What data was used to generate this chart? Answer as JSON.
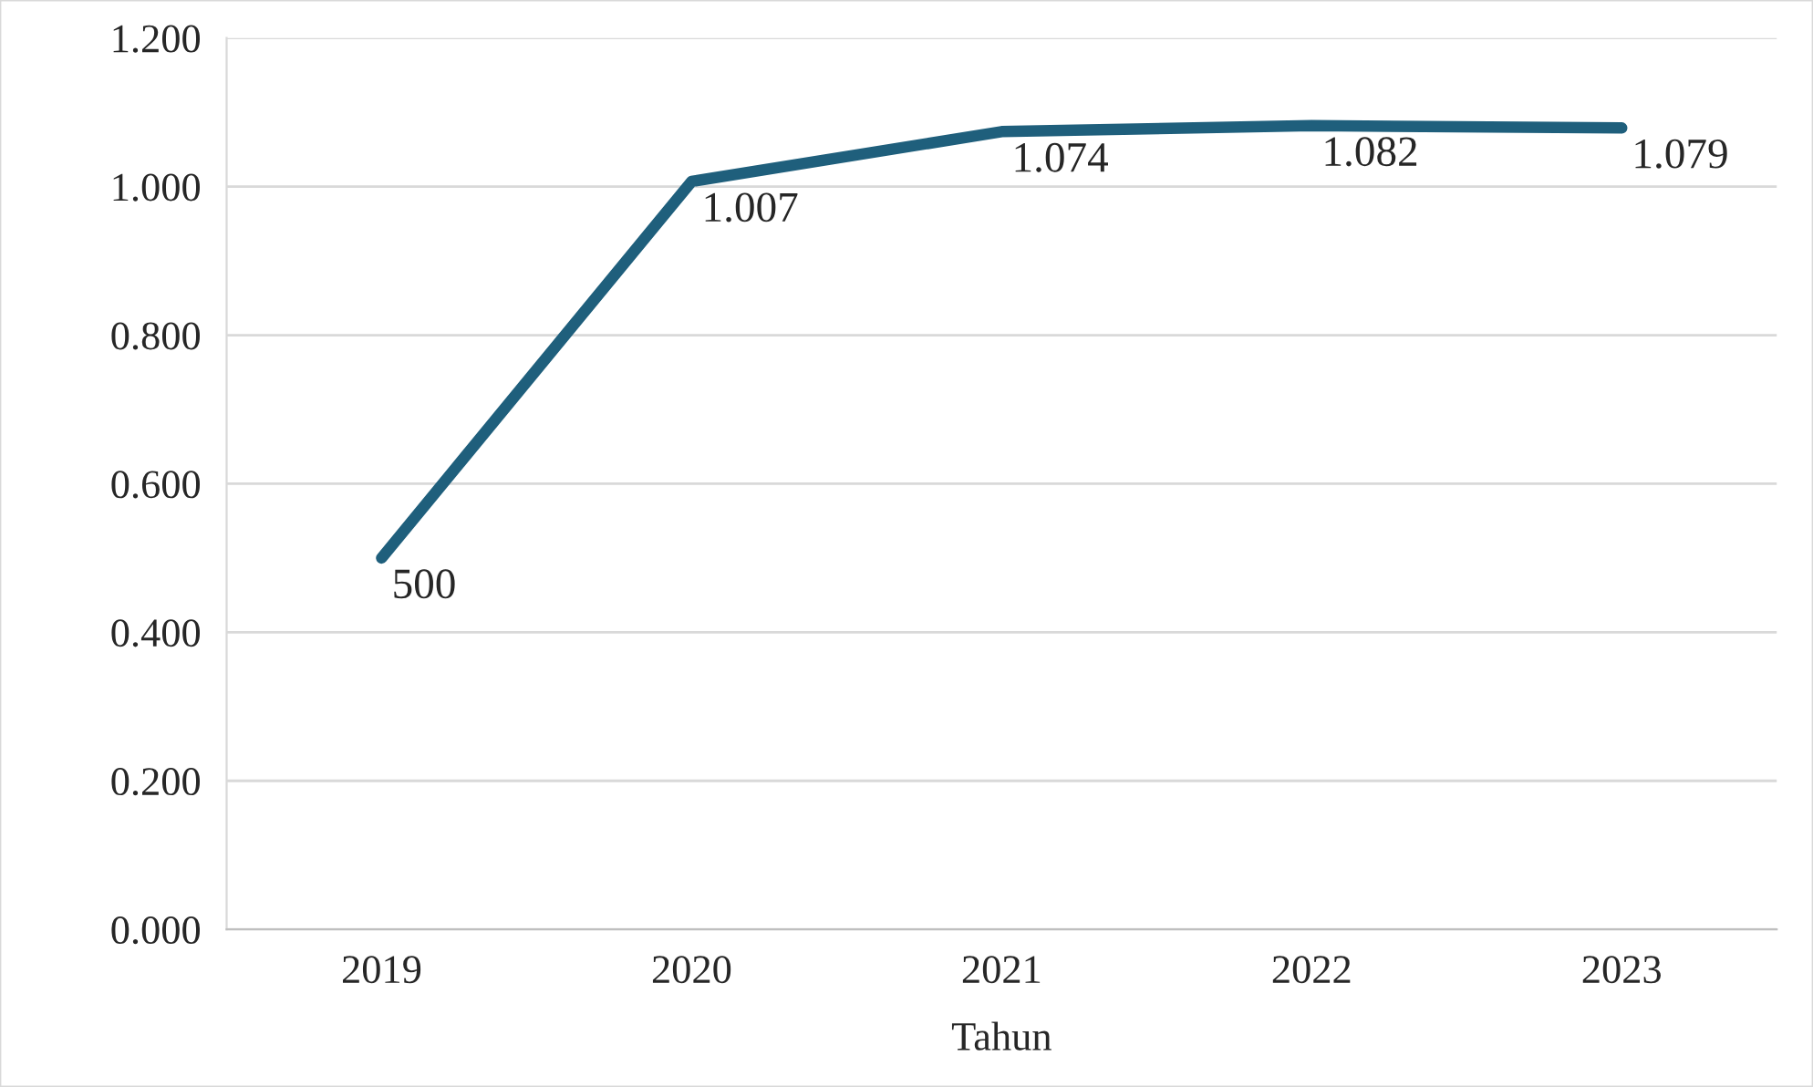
{
  "chart_data": {
    "type": "line",
    "xlabel": "Tahun",
    "categories": [
      "2019",
      "2020",
      "2021",
      "2022",
      "2023"
    ],
    "series": [
      {
        "color": "#1f5f7c",
        "values": [
          0.5,
          1.007,
          1.074,
          1.082,
          1.079
        ],
        "value_labels": [
          null,
          "1.007",
          "1.074",
          "1.082",
          "1.079"
        ]
      }
    ],
    "annotations": [
      {
        "text": "500",
        "x": "2019",
        "y": 0.5
      }
    ],
    "ylim": [
      0,
      1.2
    ],
    "yticks": [
      {
        "value": 0,
        "label": "0.000"
      },
      {
        "value": 0.2,
        "label": "0.200"
      },
      {
        "value": 0.4,
        "label": "0.400"
      },
      {
        "value": 0.6,
        "label": "0.600"
      },
      {
        "value": 0.8,
        "label": "0.800"
      },
      {
        "value": 1.0,
        "label": "1.000"
      },
      {
        "value": 1.2,
        "label": "1.200"
      }
    ],
    "grid": "y",
    "marker": "none",
    "line_style": "solid"
  }
}
